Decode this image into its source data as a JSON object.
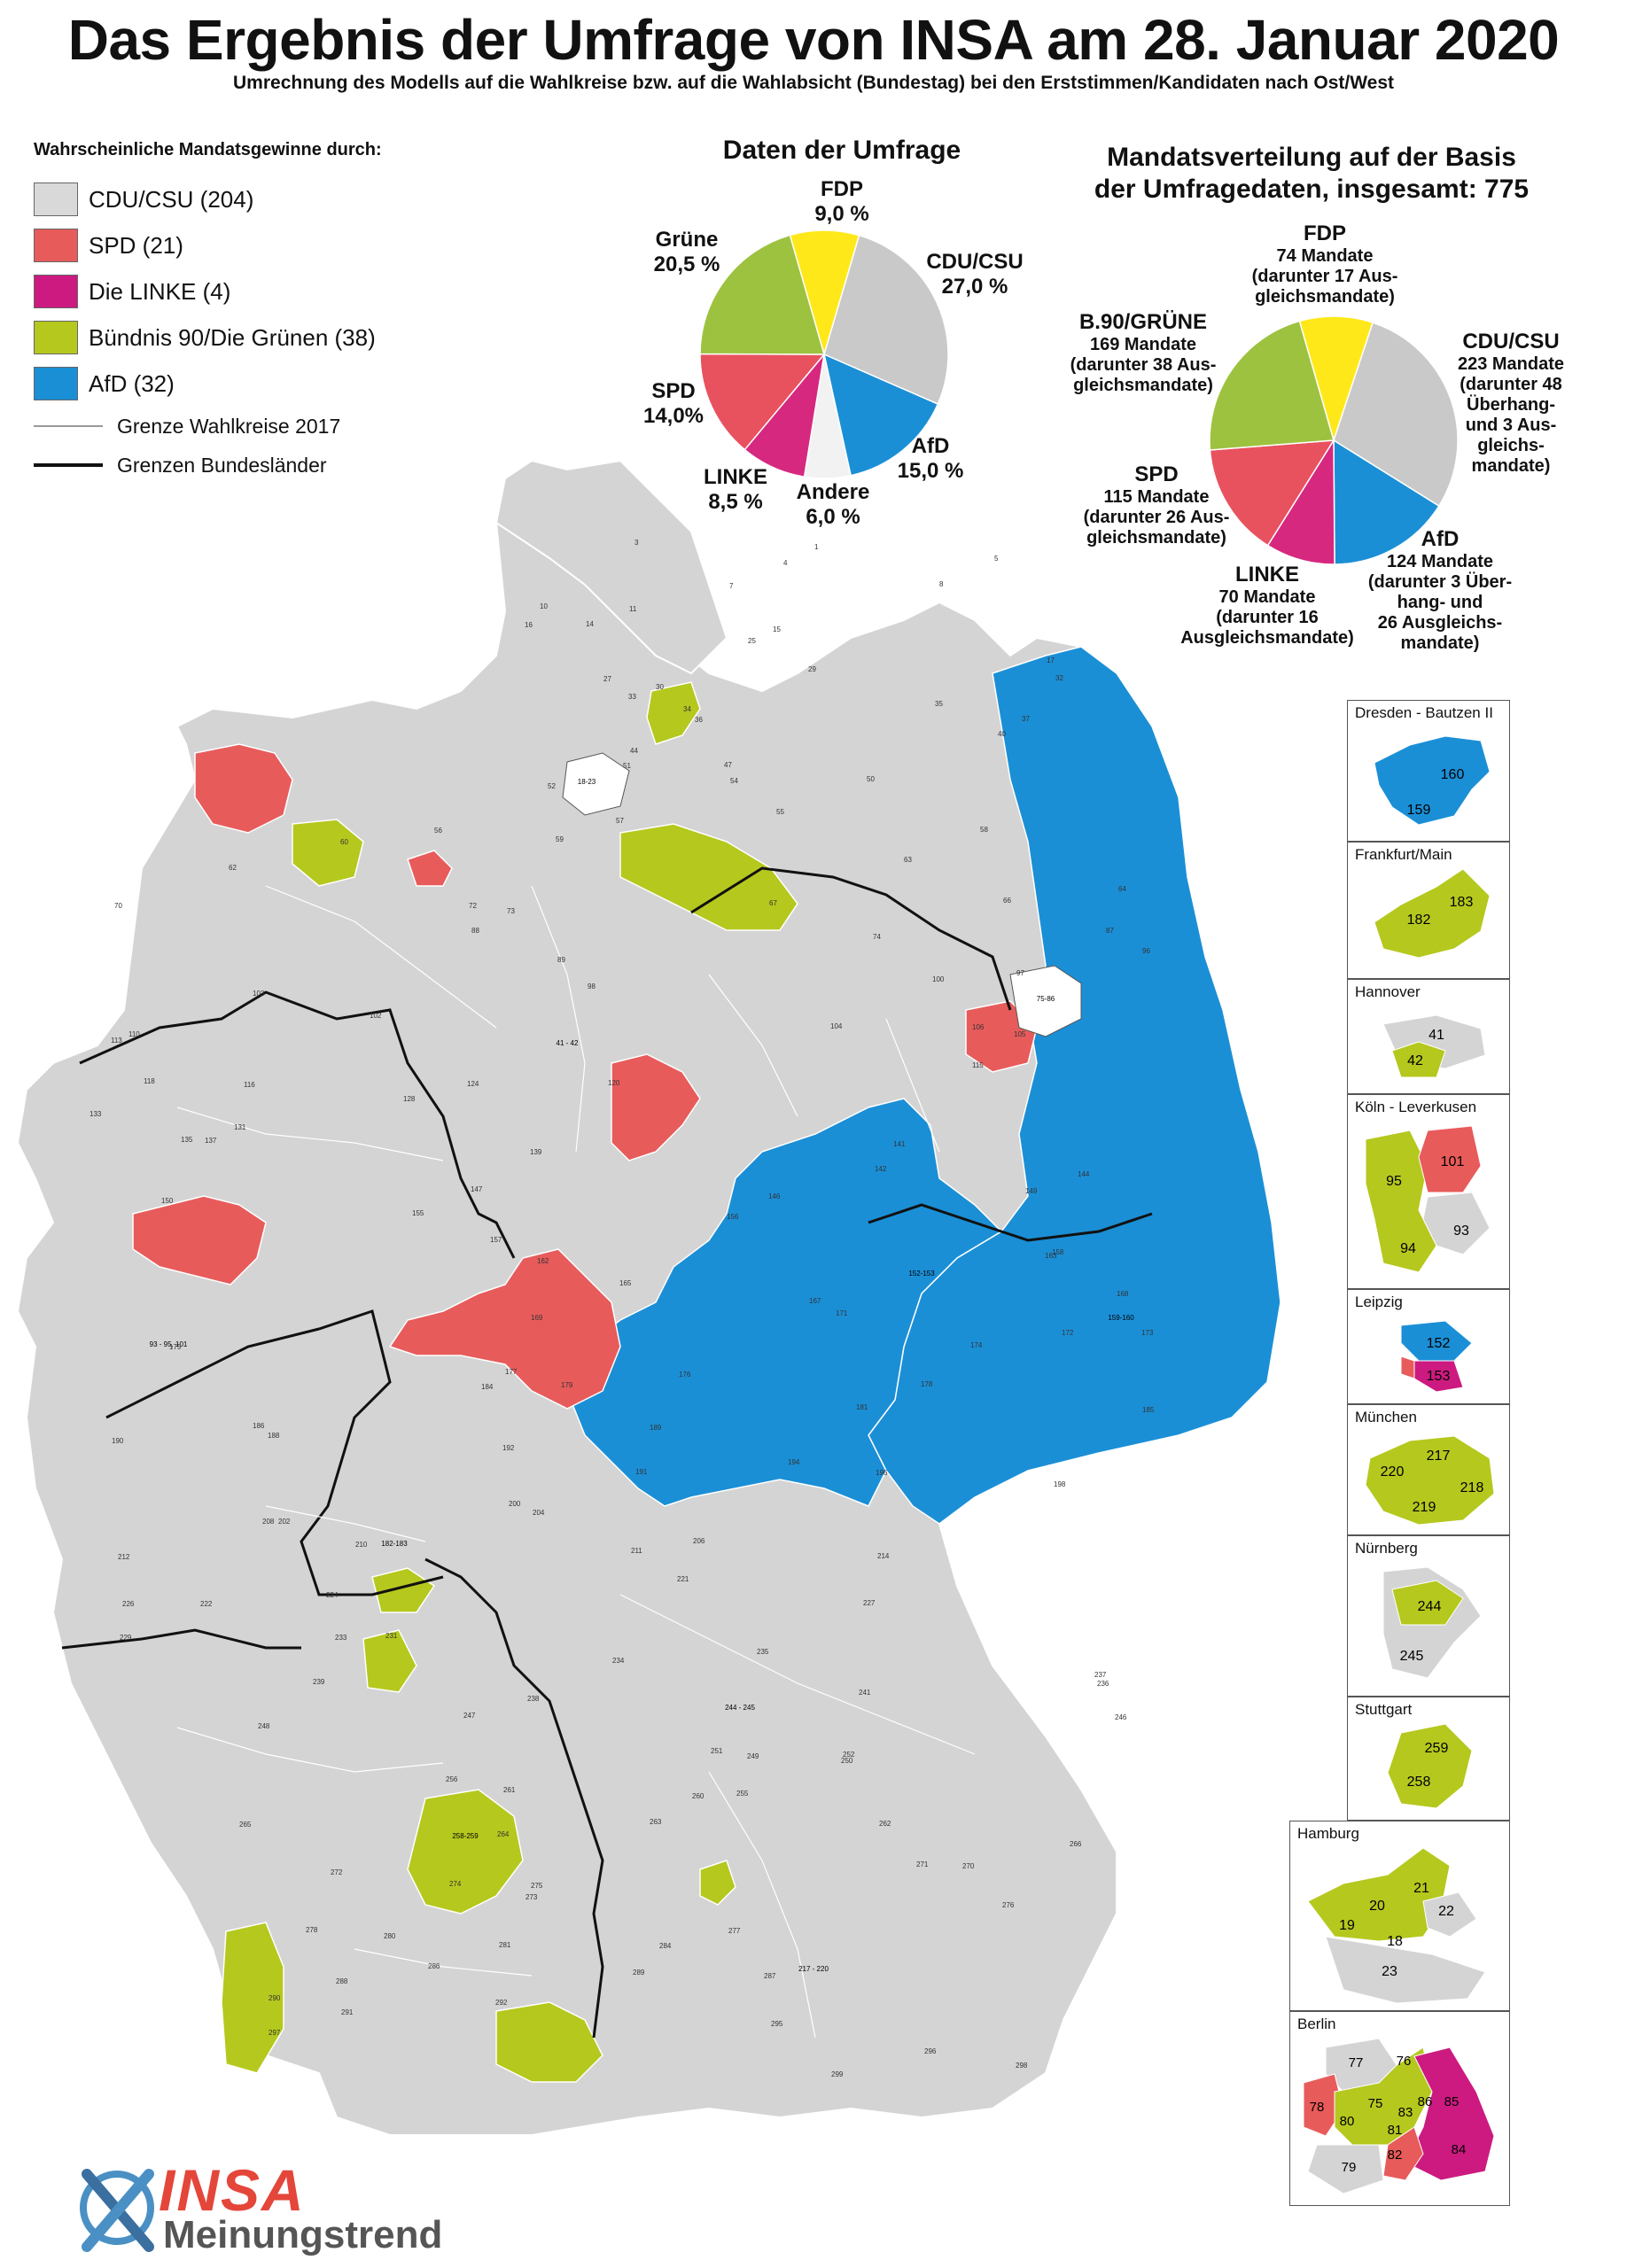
{
  "header": {
    "title": "Das Ergebnis der Umfrage von INSA am 28. Januar 2020",
    "subtitle": "Umrechnung des Modells auf die Wahlkreise bzw. auf die Wahlabsicht (Bundestag) bei den Erststimmen/Kandidaten nach Ost/West"
  },
  "legend": {
    "heading": "Wahrscheinliche Mandatsgewinne durch:",
    "items": [
      {
        "label": "CDU/CSU (204)",
        "color": "#d9d9d9"
      },
      {
        "label": "SPD (21)",
        "color": "#e85b5b"
      },
      {
        "label": "Die LINKE (4)",
        "color": "#cc1a80"
      },
      {
        "label": "Bündnis 90/Die Grünen (38)",
        "color": "#b5c81e"
      },
      {
        "label": "AfD (32)",
        "color": "#1b8fd6"
      }
    ],
    "line_thin": "Grenze Wahlkreise 2017",
    "line_thick": "Grenzen Bundesländer"
  },
  "survey_pie": {
    "title": "Daten der Umfrage",
    "labels": {
      "fdp": {
        "name": "FDP",
        "value": "9,0 %"
      },
      "cdu": {
        "name": "CDU/CSU",
        "value": "27,0 %"
      },
      "afd": {
        "name": "AfD",
        "value": "15,0 %"
      },
      "andere": {
        "name": "Andere",
        "value": "6,0 %"
      },
      "linke": {
        "name": "LINKE",
        "value": "8,5 %"
      },
      "spd": {
        "name": "SPD",
        "value": "14,0%"
      },
      "gruene": {
        "name": "Grüne",
        "value": "20,5 %"
      }
    }
  },
  "seat_pie": {
    "title_line1": "Mandatsverteilung auf der Basis",
    "title_line2": "der Umfragedaten, insgesamt: 775",
    "labels": {
      "fdp": {
        "name": "FDP",
        "line1": "74 Mandate",
        "line2": "(darunter 17 Aus-",
        "line3": "gleichsmandate)"
      },
      "cdu": {
        "name": "CDU/CSU",
        "line1": "223 Mandate",
        "line2": "(darunter 48",
        "line3": "Überhang-",
        "line4": "und 3 Aus-",
        "line5": "gleichs-",
        "line6": "mandate)"
      },
      "afd": {
        "name": "AfD",
        "line1": "124 Mandate",
        "line2": "(darunter 3 Über-",
        "line3": "hang- und",
        "line4": "26 Ausgleichs-",
        "line5": "mandate)"
      },
      "linke": {
        "name": "LINKE",
        "line1": "70 Mandate",
        "line2": "(darunter 16",
        "line3": "Ausgleichsmandate)"
      },
      "spd": {
        "name": "SPD",
        "line1": "115 Mandate",
        "line2": "(darunter 26 Aus-",
        "line3": "gleichsmandate)"
      },
      "gruene": {
        "name": "B.90/GRÜNE",
        "line1": "169 Mandate",
        "line2": "(darunter 38 Aus-",
        "line3": "gleichsmandate)"
      }
    }
  },
  "chart_data": [
    {
      "type": "pie",
      "title": "Daten der Umfrage",
      "categories": [
        "FDP",
        "CDU/CSU",
        "AfD",
        "Andere",
        "LINKE",
        "SPD",
        "Grüne"
      ],
      "values": [
        9.0,
        27.0,
        15.0,
        6.0,
        8.5,
        14.0,
        20.5
      ],
      "colors": [
        "#ffe81a",
        "#c9c9c9",
        "#1b8fd6",
        "#f2f2f2",
        "#d6287f",
        "#e8525e",
        "#9dc23f"
      ]
    },
    {
      "type": "pie",
      "title": "Mandatsverteilung auf der Basis der Umfragedaten, insgesamt: 775",
      "categories": [
        "FDP",
        "CDU/CSU",
        "AfD",
        "LINKE",
        "SPD",
        "B.90/GRÜNE"
      ],
      "values": [
        74,
        223,
        124,
        70,
        115,
        169
      ],
      "colors": [
        "#ffe81a",
        "#c9c9c9",
        "#1b8fd6",
        "#d6287f",
        "#e8525e",
        "#9dc23f"
      ]
    }
  ],
  "map": {
    "city_labels": [
      "18-23",
      "75-86",
      "41 - 42",
      "93 - 95, 101",
      "152-153",
      "159-160",
      "182-183",
      "244 - 245",
      "217 - 220",
      "258-259"
    ],
    "district_numbers": [
      "1",
      "3",
      "4",
      "5",
      "7",
      "8",
      "10",
      "11",
      "14",
      "15",
      "16",
      "17",
      "25",
      "27",
      "29",
      "30",
      "32",
      "33",
      "34",
      "35",
      "36",
      "37",
      "40",
      "44",
      "47",
      "50",
      "51",
      "52",
      "54",
      "55",
      "56",
      "57",
      "58",
      "59",
      "60",
      "62",
      "63",
      "64",
      "66",
      "67",
      "70",
      "72",
      "73",
      "74",
      "87",
      "88",
      "89",
      "96",
      "97",
      "98",
      "100",
      "102",
      "103",
      "104",
      "105",
      "106",
      "110",
      "113",
      "115",
      "116",
      "118",
      "120",
      "124",
      "128",
      "131",
      "133",
      "135",
      "137",
      "139",
      "141",
      "142",
      "144",
      "146",
      "147",
      "149",
      "150",
      "155",
      "156",
      "157",
      "158",
      "162",
      "163",
      "165",
      "167",
      "168",
      "169",
      "171",
      "172",
      "173",
      "174",
      "175",
      "176",
      "177",
      "178",
      "179",
      "181",
      "184",
      "185",
      "186",
      "188",
      "189",
      "190",
      "191",
      "192",
      "194",
      "196",
      "198",
      "200",
      "202",
      "204",
      "206",
      "208",
      "210",
      "211",
      "212",
      "214",
      "221",
      "222",
      "224",
      "226",
      "227",
      "229",
      "231",
      "233",
      "234",
      "235",
      "236",
      "237",
      "238",
      "239",
      "241",
      "246",
      "247",
      "248",
      "249",
      "250",
      "251",
      "252",
      "255",
      "256",
      "260",
      "261",
      "262",
      "263",
      "264",
      "265",
      "266",
      "270",
      "271",
      "272",
      "273",
      "274",
      "275",
      "276",
      "277",
      "278",
      "280",
      "281",
      "284",
      "286",
      "287",
      "288",
      "289",
      "290",
      "291",
      "292",
      "295",
      "296",
      "297",
      "298",
      "299"
    ]
  },
  "insets": [
    {
      "title": "Dresden - Bautzen II",
      "numbers": [
        "160",
        "159"
      ]
    },
    {
      "title": "Frankfurt/Main",
      "numbers": [
        "183",
        "182"
      ]
    },
    {
      "title": "Hannover",
      "numbers": [
        "41",
        "42"
      ]
    },
    {
      "title": "Köln -  Leverkusen",
      "numbers": [
        "95",
        "101",
        "93",
        "94"
      ]
    },
    {
      "title": "Leipzig",
      "numbers": [
        "152",
        "153"
      ]
    },
    {
      "title": "München",
      "numbers": [
        "217",
        "220",
        "218",
        "219"
      ]
    },
    {
      "title": "Nürnberg",
      "numbers": [
        "244",
        "245"
      ]
    },
    {
      "title": "Stuttgart",
      "numbers": [
        "259",
        "258"
      ]
    },
    {
      "title": "Hamburg",
      "numbers": [
        "21",
        "20",
        "22",
        "19",
        "18",
        "23"
      ]
    },
    {
      "title": "Berlin",
      "numbers": [
        "76",
        "77",
        "78",
        "75",
        "86",
        "85",
        "80",
        "83",
        "81",
        "82",
        "84",
        "79"
      ]
    }
  ],
  "logo": {
    "brand": "INSA",
    "sub": "Meinungstrend"
  }
}
